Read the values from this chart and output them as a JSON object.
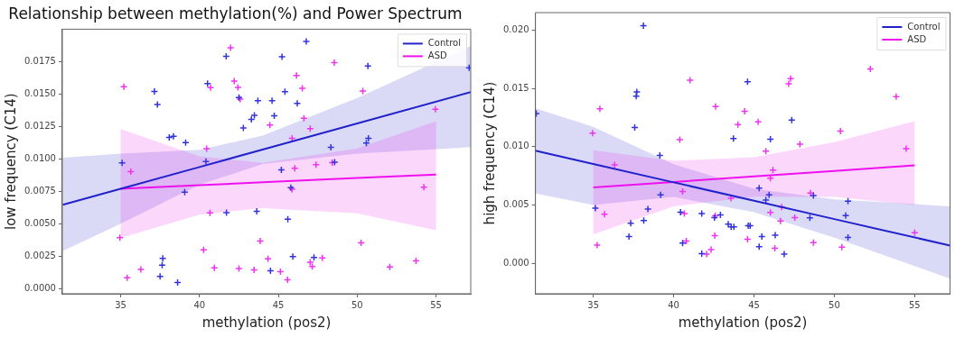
{
  "chart_data": [
    {
      "type": "scatter",
      "title": "Relationship between methylation(%) and Power Spectrum",
      "xlabel": "methylation (pos2)",
      "ylabel": "low frequency (C14)",
      "xlim": [
        31.3,
        57.2
      ],
      "xticks": [
        35,
        40,
        45,
        50,
        55
      ],
      "ylim": [
        -0.0004,
        0.02
      ],
      "yticks": [
        {
          "value": 0,
          "label": "0.0000"
        },
        {
          "value": 0.0025,
          "label": "0.0025"
        },
        {
          "value": 0.005,
          "label": "0.0050"
        },
        {
          "value": 0.0075,
          "label": "0.0075"
        },
        {
          "value": 0.01,
          "label": "0.0100"
        },
        {
          "value": 0.0125,
          "label": "0.0125"
        },
        {
          "value": 0.015,
          "label": "0.0150"
        },
        {
          "value": 0.0175,
          "label": "0.0175"
        }
      ],
      "legend": "top right",
      "marker": "cross",
      "grid": false,
      "series": [
        {
          "type": "line",
          "marker": "none",
          "name": "Control",
          "color": "#2222cc",
          "x": [
            31.33,
            35,
            40,
            44,
            50,
            57.2
          ],
          "values": [
            0.00646,
            0.00769,
            0.00937,
            0.01072,
            0.01273,
            0.01515
          ],
          "lower": [
            0.0029,
            0.005,
            0.008,
            0.0096,
            0.0104,
            0.0109
          ],
          "upper": [
            0.0101,
            0.0104,
            0.0107,
            0.0118,
            0.0147,
            0.0187
          ]
        },
        {
          "type": "line",
          "marker": "none",
          "name": "ASD",
          "color": "#ee11ee",
          "x": [
            35,
            40,
            44,
            50,
            55
          ],
          "values": [
            0.0077,
            0.00797,
            0.00819,
            0.00852,
            0.00879
          ],
          "lower": [
            0.0039,
            0.0057,
            0.0062,
            0.0058,
            0.0045
          ],
          "upper": [
            0.0123,
            0.0102,
            0.0097,
            0.0108,
            0.0129
          ]
        },
        {
          "color": "#3333dd",
          "x": [
            41.69,
            40.51,
            37.14,
            37.33,
            38.08,
            38.35,
            39.12,
            35.09,
            40.41,
            39.06,
            37.67,
            37.63,
            37.5,
            38.61,
            41.71,
            43.63,
            42.5,
            42.78,
            43.29,
            43.48,
            43.7,
            44.6,
            44.5,
            46.77,
            45.23,
            50.68,
            45.42,
            46.2,
            44.74,
            57.1,
            50.71,
            50.58,
            48.33,
            48.57,
            45.19,
            45.79,
            45.6,
            45.92,
            47.26
          ],
          "values": [
            0.0179,
            0.0158,
            0.0152,
            0.0142,
            0.01165,
            0.01174,
            0.01126,
            0.0097,
            0.0098,
            0.00744,
            0.00233,
            0.00181,
            0.00094,
            0.00046,
            0.00585,
            0.00596,
            0.01473,
            0.01239,
            0.01305,
            0.01335,
            0.01449,
            0.01449,
            0.00137,
            0.01905,
            0.01787,
            0.01717,
            0.01519,
            0.01427,
            0.01333,
            0.01702,
            0.01159,
            0.01122,
            0.01089,
            0.00975,
            0.00916,
            0.00779,
            0.00535,
            0.00247,
            0.0024
          ]
        },
        {
          "color": "#ee33ee",
          "x": [
            35.2,
            35.64,
            34.95,
            35.41,
            36.28,
            41.97,
            42.2,
            42.44,
            42.58,
            40.45,
            40.7,
            40.66,
            40.26,
            40.94,
            42.5,
            43.46,
            43.85,
            44.34,
            44.46,
            48.55,
            46.15,
            46.52,
            50.36,
            54.96,
            46.62,
            47.02,
            45.87,
            47.39,
            46.04,
            48.42,
            45.87,
            54.23,
            50.25,
            47.02,
            47.15,
            47.79,
            52.07,
            53.73,
            45.13,
            45.58
          ],
          "values": [
            0.01556,
            0.00901,
            0.00393,
            0.00083,
            0.00148,
            0.01857,
            0.016,
            0.01551,
            0.0146,
            0.01078,
            0.01549,
            0.00583,
            0.00299,
            0.00159,
            0.00155,
            0.00144,
            0.00367,
            0.00229,
            0.01261,
            0.01743,
            0.01643,
            0.01545,
            0.01523,
            0.01383,
            0.01314,
            0.01233,
            0.01159,
            0.00956,
            0.00927,
            0.00971,
            0.00766,
            0.00781,
            0.00353,
            0.00203,
            0.0017,
            0.00236,
            0.00166,
            0.00214,
            0.00131,
            0.00068
          ]
        }
      ]
    },
    {
      "type": "scatter",
      "xlabel": "methylation (pos2)",
      "ylabel": "high frequency (C14)",
      "xlim": [
        31.4,
        57.2
      ],
      "xticks": [
        35,
        40,
        45,
        50,
        55
      ],
      "ylim": [
        -0.0026,
        0.0215
      ],
      "yticks": [
        {
          "value": 0,
          "label": "0.000"
        },
        {
          "value": 0.005,
          "label": "0.005"
        },
        {
          "value": 0.01,
          "label": "0.010"
        },
        {
          "value": 0.015,
          "label": "0.015"
        },
        {
          "value": 0.02,
          "label": "0.020"
        }
      ],
      "legend": "top right",
      "marker": "cross",
      "grid": false,
      "series": [
        {
          "type": "line",
          "marker": "none",
          "name": "Control",
          "color": "#2222cc",
          "x": [
            31.4,
            35,
            40,
            45,
            50,
            57.2
          ],
          "values": [
            0.00966,
            0.00853,
            0.00695,
            0.00538,
            0.0038,
            0.00153
          ],
          "lower": [
            0.006,
            0.005,
            0.0057,
            0.0044,
            0.0022,
            -0.0013
          ],
          "upper": [
            0.0133,
            0.0117,
            0.0085,
            0.0064,
            0.0055,
            0.0049
          ]
        },
        {
          "type": "line",
          "marker": "none",
          "name": "ASD",
          "color": "#ee11ee",
          "x": [
            35,
            40,
            45,
            50,
            55
          ],
          "values": [
            0.00651,
            0.00698,
            0.00746,
            0.00793,
            0.0084
          ],
          "lower": [
            0.0025,
            0.0049,
            0.0057,
            0.0057,
            0.005
          ],
          "upper": [
            0.0097,
            0.0088,
            0.0091,
            0.0104,
            0.0122
          ]
        },
        {
          "color": "#3333dd",
          "x": [
            38.12,
            37.71,
            37.67,
            37.58,
            39.14,
            39.19,
            35.13,
            38.4,
            37.33,
            38.14,
            37.22,
            40.43,
            40.56,
            41.75,
            41.75,
            42.54,
            42.91,
            43.4,
            31.45,
            44.6,
            47.35,
            43.72,
            46.02,
            45.32,
            45.94,
            45.74,
            43.58,
            43.75,
            44.64,
            44.76,
            45.49,
            46.32,
            45.32,
            46.88,
            48.48,
            48.7,
            50.85,
            50.71,
            50.85
          ],
          "values": [
            0.02038,
            0.01471,
            0.01433,
            0.01165,
            0.00925,
            0.00587,
            0.00473,
            0.00467,
            0.00345,
            0.00368,
            0.0023,
            0.00439,
            0.00174,
            0.00427,
            0.00084,
            0.00393,
            0.00416,
            0.00337,
            0.01285,
            0.01558,
            0.01229,
            0.0107,
            0.01065,
            0.00646,
            0.00587,
            0.00544,
            0.00314,
            0.00314,
            0.00324,
            0.00324,
            0.0023,
            0.00243,
            0.00143,
            0.00079,
            0.00391,
            0.00582,
            0.00534,
            0.00411,
            0.00222
          ]
        },
        {
          "color": "#ee33ee",
          "x": [
            34.96,
            35.41,
            35.24,
            35.7,
            36.33,
            40.38,
            41.02,
            40.56,
            40.67,
            40.79,
            42.05,
            42.33,
            42.56,
            42.61,
            42.59,
            52.24,
            47.28,
            47.16,
            53.85,
            44.42,
            44.0,
            45.26,
            50.38,
            47.86,
            45.74,
            54.47,
            46.18,
            46.02,
            43.57,
            48.52,
            46.02,
            46.73,
            47.54,
            46.65,
            44.6,
            46.3,
            48.7,
            50.47,
            55.0
          ],
          "values": [
            0.01116,
            0.01326,
            0.00158,
            0.00421,
            0.00845,
            0.0106,
            0.01571,
            0.00616,
            0.00427,
            0.00192,
            0.00079,
            0.00118,
            0.00238,
            0.01344,
            0.00409,
            0.01668,
            0.01584,
            0.0154,
            0.0143,
            0.01305,
            0.0119,
            0.01213,
            0.01134,
            0.01022,
            0.00963,
            0.00983,
            0.008,
            0.00731,
            0.00559,
            0.00603,
            0.00437,
            0.00483,
            0.00393,
            0.00363,
            0.00207,
            0.0013,
            0.00179,
            0.0014,
            0.00263
          ]
        }
      ]
    }
  ]
}
